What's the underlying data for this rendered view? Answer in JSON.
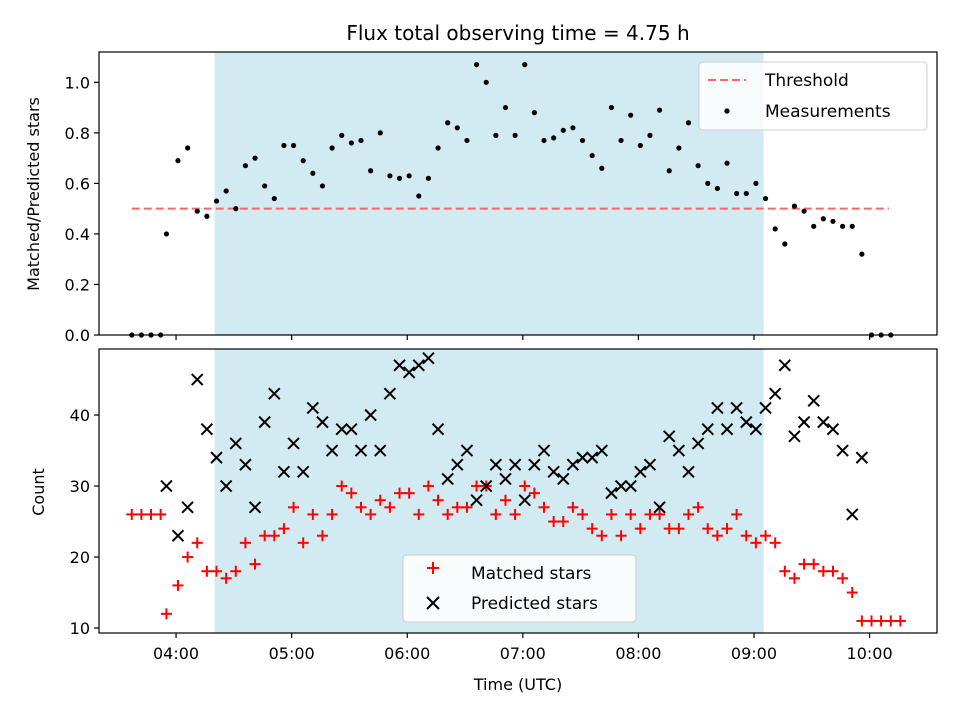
{
  "figure": {
    "title": "Flux total observing time = 4.75 h",
    "xlabel": "Time (UTC)",
    "x_ticks": [
      "04:00",
      "05:00",
      "06:00",
      "07:00",
      "08:00",
      "09:00",
      "10:00"
    ]
  },
  "colors": {
    "span": "#add8e6",
    "threshold": "#ff6666",
    "measurement": "#000000",
    "matched": "#ff0000",
    "predicted": "#000000"
  },
  "chart_data": [
    {
      "type": "scatter",
      "ylabel": "Matched/Predicted stars",
      "xlim": [
        "03:20",
        "10:35"
      ],
      "ylim": [
        0,
        1.12
      ],
      "yticks": [
        "0.0",
        "0.2",
        "0.4",
        "0.6",
        "0.8",
        "1.0"
      ],
      "ytick_values": [
        0,
        0.2,
        0.4,
        0.6,
        0.8,
        1.0
      ],
      "observing_span": [
        "04:20",
        "09:05"
      ],
      "threshold": {
        "name": "Threshold",
        "y": 0.5,
        "x_range": [
          "03:37",
          "10:10"
        ]
      },
      "legend": {
        "position": "top-right",
        "entries": [
          "Threshold",
          "Measurements"
        ]
      },
      "series": [
        {
          "name": "Measurements",
          "points": [
            [
              "03:37",
              0.0
            ],
            [
              "03:42",
              0.0
            ],
            [
              "03:47",
              0.0
            ],
            [
              "03:52",
              0.0
            ],
            [
              "03:55",
              0.4
            ],
            [
              "04:01",
              0.69
            ],
            [
              "04:06",
              0.74
            ],
            [
              "04:11",
              0.49
            ],
            [
              "04:16",
              0.47
            ],
            [
              "04:21",
              0.53
            ],
            [
              "04:26",
              0.57
            ],
            [
              "04:31",
              0.5
            ],
            [
              "04:36",
              0.67
            ],
            [
              "04:41",
              0.7
            ],
            [
              "04:46",
              0.59
            ],
            [
              "04:51",
              0.54
            ],
            [
              "04:56",
              0.75
            ],
            [
              "05:01",
              0.75
            ],
            [
              "05:06",
              0.69
            ],
            [
              "05:11",
              0.64
            ],
            [
              "05:16",
              0.59
            ],
            [
              "05:21",
              0.74
            ],
            [
              "05:26",
              0.79
            ],
            [
              "05:31",
              0.76
            ],
            [
              "05:36",
              0.77
            ],
            [
              "05:41",
              0.65
            ],
            [
              "05:46",
              0.8
            ],
            [
              "05:51",
              0.63
            ],
            [
              "05:56",
              0.62
            ],
            [
              "06:01",
              0.63
            ],
            [
              "06:06",
              0.55
            ],
            [
              "06:11",
              0.62
            ],
            [
              "06:16",
              0.74
            ],
            [
              "06:21",
              0.84
            ],
            [
              "06:26",
              0.82
            ],
            [
              "06:31",
              0.77
            ],
            [
              "06:36",
              1.07
            ],
            [
              "06:41",
              1.0
            ],
            [
              "06:46",
              0.79
            ],
            [
              "06:51",
              0.9
            ],
            [
              "06:56",
              0.79
            ],
            [
              "07:01",
              1.07
            ],
            [
              "07:06",
              0.88
            ],
            [
              "07:11",
              0.77
            ],
            [
              "07:16",
              0.78
            ],
            [
              "07:21",
              0.81
            ],
            [
              "07:26",
              0.82
            ],
            [
              "07:31",
              0.77
            ],
            [
              "07:36",
              0.71
            ],
            [
              "07:41",
              0.66
            ],
            [
              "07:46",
              0.9
            ],
            [
              "07:51",
              0.77
            ],
            [
              "07:56",
              0.87
            ],
            [
              "08:01",
              0.75
            ],
            [
              "08:06",
              0.79
            ],
            [
              "08:11",
              0.89
            ],
            [
              "08:16",
              0.65
            ],
            [
              "08:21",
              0.74
            ],
            [
              "08:26",
              0.84
            ],
            [
              "08:31",
              0.67
            ],
            [
              "08:36",
              0.6
            ],
            [
              "08:41",
              0.58
            ],
            [
              "08:46",
              0.68
            ],
            [
              "08:51",
              0.56
            ],
            [
              "08:56",
              0.56
            ],
            [
              "09:01",
              0.6
            ],
            [
              "09:06",
              0.54
            ],
            [
              "09:11",
              0.42
            ],
            [
              "09:16",
              0.36
            ],
            [
              "09:21",
              0.51
            ],
            [
              "09:26",
              0.49
            ],
            [
              "09:31",
              0.43
            ],
            [
              "09:36",
              0.46
            ],
            [
              "09:41",
              0.45
            ],
            [
              "09:46",
              0.43
            ],
            [
              "09:51",
              0.43
            ],
            [
              "09:56",
              0.32
            ],
            [
              "10:01",
              0.0
            ],
            [
              "10:06",
              0.0
            ],
            [
              "10:11",
              0.0
            ]
          ]
        }
      ]
    },
    {
      "type": "scatter",
      "ylabel": "Count",
      "xlabel": "Time (UTC)",
      "xlim": [
        "03:20",
        "10:35"
      ],
      "ylim": [
        9.3,
        49.3
      ],
      "yticks": [
        "10",
        "20",
        "30",
        "40"
      ],
      "ytick_values": [
        10,
        20,
        30,
        40
      ],
      "observing_span": [
        "04:20",
        "09:05"
      ],
      "legend": {
        "position": "lower-center",
        "entries": [
          "Matched stars",
          "Predicted stars"
        ]
      },
      "series": [
        {
          "name": "Matched stars",
          "marker": "+",
          "points": [
            [
              "03:37",
              26
            ],
            [
              "03:42",
              26
            ],
            [
              "03:47",
              26
            ],
            [
              "03:52",
              26
            ],
            [
              "03:55",
              12
            ],
            [
              "04:01",
              16
            ],
            [
              "04:06",
              20
            ],
            [
              "04:11",
              22
            ],
            [
              "04:16",
              18
            ],
            [
              "04:21",
              18
            ],
            [
              "04:26",
              17
            ],
            [
              "04:31",
              18
            ],
            [
              "04:36",
              22
            ],
            [
              "04:41",
              19
            ],
            [
              "04:46",
              23
            ],
            [
              "04:51",
              23
            ],
            [
              "04:56",
              24
            ],
            [
              "05:01",
              27
            ],
            [
              "05:06",
              22
            ],
            [
              "05:11",
              26
            ],
            [
              "05:16",
              23
            ],
            [
              "05:21",
              26
            ],
            [
              "05:26",
              30
            ],
            [
              "05:31",
              29
            ],
            [
              "05:36",
              27
            ],
            [
              "05:41",
              26
            ],
            [
              "05:46",
              28
            ],
            [
              "05:51",
              27
            ],
            [
              "05:56",
              29
            ],
            [
              "06:01",
              29
            ],
            [
              "06:06",
              26
            ],
            [
              "06:11",
              30
            ],
            [
              "06:16",
              28
            ],
            [
              "06:21",
              26
            ],
            [
              "06:26",
              27
            ],
            [
              "06:31",
              27
            ],
            [
              "06:36",
              30
            ],
            [
              "06:41",
              30
            ],
            [
              "06:46",
              26
            ],
            [
              "06:51",
              28
            ],
            [
              "06:56",
              26
            ],
            [
              "07:01",
              30
            ],
            [
              "07:06",
              29
            ],
            [
              "07:11",
              27
            ],
            [
              "07:16",
              25
            ],
            [
              "07:21",
              25
            ],
            [
              "07:26",
              27
            ],
            [
              "07:31",
              26
            ],
            [
              "07:36",
              24
            ],
            [
              "07:41",
              23
            ],
            [
              "07:46",
              26
            ],
            [
              "07:51",
              23
            ],
            [
              "07:56",
              26
            ],
            [
              "08:01",
              24
            ],
            [
              "08:06",
              26
            ],
            [
              "08:11",
              26
            ],
            [
              "08:16",
              24
            ],
            [
              "08:21",
              24
            ],
            [
              "08:26",
              26
            ],
            [
              "08:31",
              27
            ],
            [
              "08:36",
              24
            ],
            [
              "08:41",
              23
            ],
            [
              "08:46",
              24
            ],
            [
              "08:51",
              26
            ],
            [
              "08:56",
              23
            ],
            [
              "09:01",
              22
            ],
            [
              "09:06",
              23
            ],
            [
              "09:11",
              22
            ],
            [
              "09:16",
              18
            ],
            [
              "09:21",
              17
            ],
            [
              "09:26",
              19
            ],
            [
              "09:31",
              19
            ],
            [
              "09:36",
              18
            ],
            [
              "09:41",
              18
            ],
            [
              "09:46",
              17
            ],
            [
              "09:51",
              15
            ],
            [
              "09:56",
              11
            ],
            [
              "10:01",
              11
            ],
            [
              "10:06",
              11
            ],
            [
              "10:11",
              11
            ],
            [
              "10:16",
              11
            ]
          ]
        },
        {
          "name": "Predicted stars",
          "marker": "x",
          "points": [
            [
              "03:55",
              30
            ],
            [
              "04:01",
              23
            ],
            [
              "04:06",
              27
            ],
            [
              "04:11",
              45
            ],
            [
              "04:16",
              38
            ],
            [
              "04:21",
              34
            ],
            [
              "04:26",
              30
            ],
            [
              "04:31",
              36
            ],
            [
              "04:36",
              33
            ],
            [
              "04:41",
              27
            ],
            [
              "04:46",
              39
            ],
            [
              "04:51",
              43
            ],
            [
              "04:56",
              32
            ],
            [
              "05:01",
              36
            ],
            [
              "05:06",
              32
            ],
            [
              "05:11",
              41
            ],
            [
              "05:16",
              39
            ],
            [
              "05:21",
              35
            ],
            [
              "05:26",
              38
            ],
            [
              "05:31",
              38
            ],
            [
              "05:36",
              35
            ],
            [
              "05:41",
              40
            ],
            [
              "05:46",
              35
            ],
            [
              "05:51",
              43
            ],
            [
              "05:56",
              47
            ],
            [
              "06:01",
              46
            ],
            [
              "06:06",
              47
            ],
            [
              "06:11",
              48
            ],
            [
              "06:16",
              38
            ],
            [
              "06:21",
              31
            ],
            [
              "06:26",
              33
            ],
            [
              "06:31",
              35
            ],
            [
              "06:36",
              28
            ],
            [
              "06:41",
              30
            ],
            [
              "06:46",
              33
            ],
            [
              "06:51",
              31
            ],
            [
              "06:56",
              33
            ],
            [
              "07:01",
              28
            ],
            [
              "07:06",
              33
            ],
            [
              "07:11",
              35
            ],
            [
              "07:16",
              32
            ],
            [
              "07:21",
              31
            ],
            [
              "07:26",
              33
            ],
            [
              "07:31",
              34
            ],
            [
              "07:36",
              34
            ],
            [
              "07:41",
              35
            ],
            [
              "07:46",
              29
            ],
            [
              "07:51",
              30
            ],
            [
              "07:56",
              30
            ],
            [
              "08:01",
              32
            ],
            [
              "08:06",
              33
            ],
            [
              "08:11",
              27
            ],
            [
              "08:16",
              37
            ],
            [
              "08:21",
              35
            ],
            [
              "08:26",
              32
            ],
            [
              "08:31",
              36
            ],
            [
              "08:36",
              38
            ],
            [
              "08:41",
              41
            ],
            [
              "08:46",
              38
            ],
            [
              "08:51",
              41
            ],
            [
              "08:56",
              39
            ],
            [
              "09:01",
              38
            ],
            [
              "09:06",
              41
            ],
            [
              "09:11",
              43
            ],
            [
              "09:16",
              47
            ],
            [
              "09:21",
              37
            ],
            [
              "09:26",
              39
            ],
            [
              "09:31",
              42
            ],
            [
              "09:36",
              39
            ],
            [
              "09:41",
              38
            ],
            [
              "09:46",
              35
            ],
            [
              "09:51",
              26
            ],
            [
              "09:56",
              34
            ]
          ]
        }
      ]
    }
  ]
}
